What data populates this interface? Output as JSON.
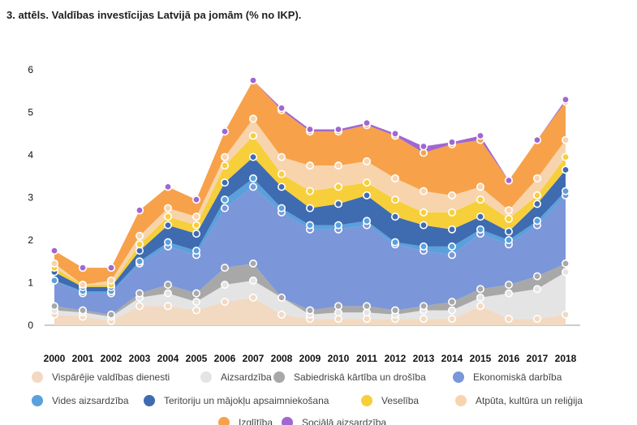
{
  "title": "3. attēls. Valdības investīcijas Latvijā pa jomām (% no IKP).",
  "chart_data": {
    "type": "area",
    "stacked": true,
    "title": "3. attēls. Valdības investīcijas Latvijā pa jomām (% no IKP).",
    "xlabel": "",
    "ylabel": "",
    "ylim": [
      0,
      6
    ],
    "yticks": [
      0,
      1,
      2,
      3,
      4,
      5,
      6
    ],
    "grid": false,
    "legend_position": "bottom",
    "x": [
      "2000",
      "2001",
      "2002",
      "2003",
      "2004",
      "2005",
      "2006",
      "2007",
      "2008",
      "2009",
      "2010",
      "2011",
      "2012",
      "2013",
      "2014",
      "2015",
      "2016",
      "2017",
      "2018"
    ],
    "series": [
      {
        "name": "Vispārējie valdības dienesti",
        "color": "#f2d9c2",
        "values": [
          0.25,
          0.2,
          0.1,
          0.45,
          0.45,
          0.35,
          0.55,
          0.65,
          0.25,
          0.15,
          0.15,
          0.15,
          0.15,
          0.15,
          0.15,
          0.45,
          0.15,
          0.15,
          0.25
        ]
      },
      {
        "name": "Aizsardzība",
        "color": "#e4e4e4",
        "values": [
          0.1,
          0.1,
          0.1,
          0.2,
          0.3,
          0.2,
          0.4,
          0.4,
          0.4,
          0.1,
          0.15,
          0.15,
          0.1,
          0.2,
          0.2,
          0.2,
          0.6,
          0.7,
          1.0
        ]
      },
      {
        "name": "Sabiedriskā kārtība un drošība",
        "color": "#a8a8a8",
        "values": [
          0.1,
          0.05,
          0.05,
          0.1,
          0.2,
          0.2,
          0.4,
          0.4,
          0.0,
          0.1,
          0.15,
          0.15,
          0.1,
          0.1,
          0.2,
          0.2,
          0.2,
          0.3,
          0.2
        ]
      },
      {
        "name": "Ekonomiskā darbība",
        "color": "#7b96d9",
        "values": [
          0.6,
          0.4,
          0.5,
          0.7,
          0.9,
          0.9,
          1.4,
          1.8,
          2.0,
          1.9,
          1.8,
          1.9,
          1.55,
          1.3,
          1.1,
          1.3,
          0.95,
          1.2,
          1.6
        ]
      },
      {
        "name": "Vides aizsardzība",
        "color": "#5aa0dc",
        "values": [
          0.0,
          0.05,
          0.05,
          0.05,
          0.1,
          0.1,
          0.2,
          0.2,
          0.1,
          0.1,
          0.1,
          0.1,
          0.05,
          0.1,
          0.2,
          0.1,
          0.1,
          0.1,
          0.1
        ]
      },
      {
        "name": "Teritoriju un mājokļu apsaimniekošana",
        "color": "#3f6bb0",
        "values": [
          0.2,
          0.1,
          0.1,
          0.25,
          0.4,
          0.4,
          0.4,
          0.5,
          0.5,
          0.4,
          0.5,
          0.6,
          0.6,
          0.5,
          0.4,
          0.3,
          0.2,
          0.4,
          0.5
        ]
      },
      {
        "name": "Veselība",
        "color": "#f6cf3b",
        "values": [
          0.1,
          0.05,
          0.05,
          0.15,
          0.2,
          0.2,
          0.4,
          0.5,
          0.3,
          0.4,
          0.4,
          0.3,
          0.4,
          0.3,
          0.4,
          0.4,
          0.3,
          0.2,
          0.3
        ]
      },
      {
        "name": "Atpūta, kultūra un reliģija",
        "color": "#f8d4ac",
        "values": [
          0.1,
          0.0,
          0.1,
          0.2,
          0.2,
          0.2,
          0.2,
          0.4,
          0.4,
          0.6,
          0.5,
          0.5,
          0.5,
          0.5,
          0.4,
          0.3,
          0.2,
          0.4,
          0.4
        ]
      },
      {
        "name": "Izglītība",
        "color": "#f7a24a",
        "values": [
          0.3,
          0.4,
          0.3,
          0.6,
          0.5,
          0.4,
          0.6,
          0.9,
          1.1,
          0.8,
          0.8,
          0.85,
          1.0,
          0.9,
          1.2,
          1.1,
          0.7,
          0.9,
          0.9
        ]
      },
      {
        "name": "Sociālā aizsardzība",
        "color": "#a167cf",
        "values": [
          0.0,
          0.0,
          0.0,
          0.0,
          0.0,
          0.0,
          0.0,
          0.0,
          0.05,
          0.05,
          0.05,
          0.05,
          0.05,
          0.15,
          0.05,
          0.1,
          0.0,
          0.0,
          0.05
        ]
      }
    ]
  }
}
